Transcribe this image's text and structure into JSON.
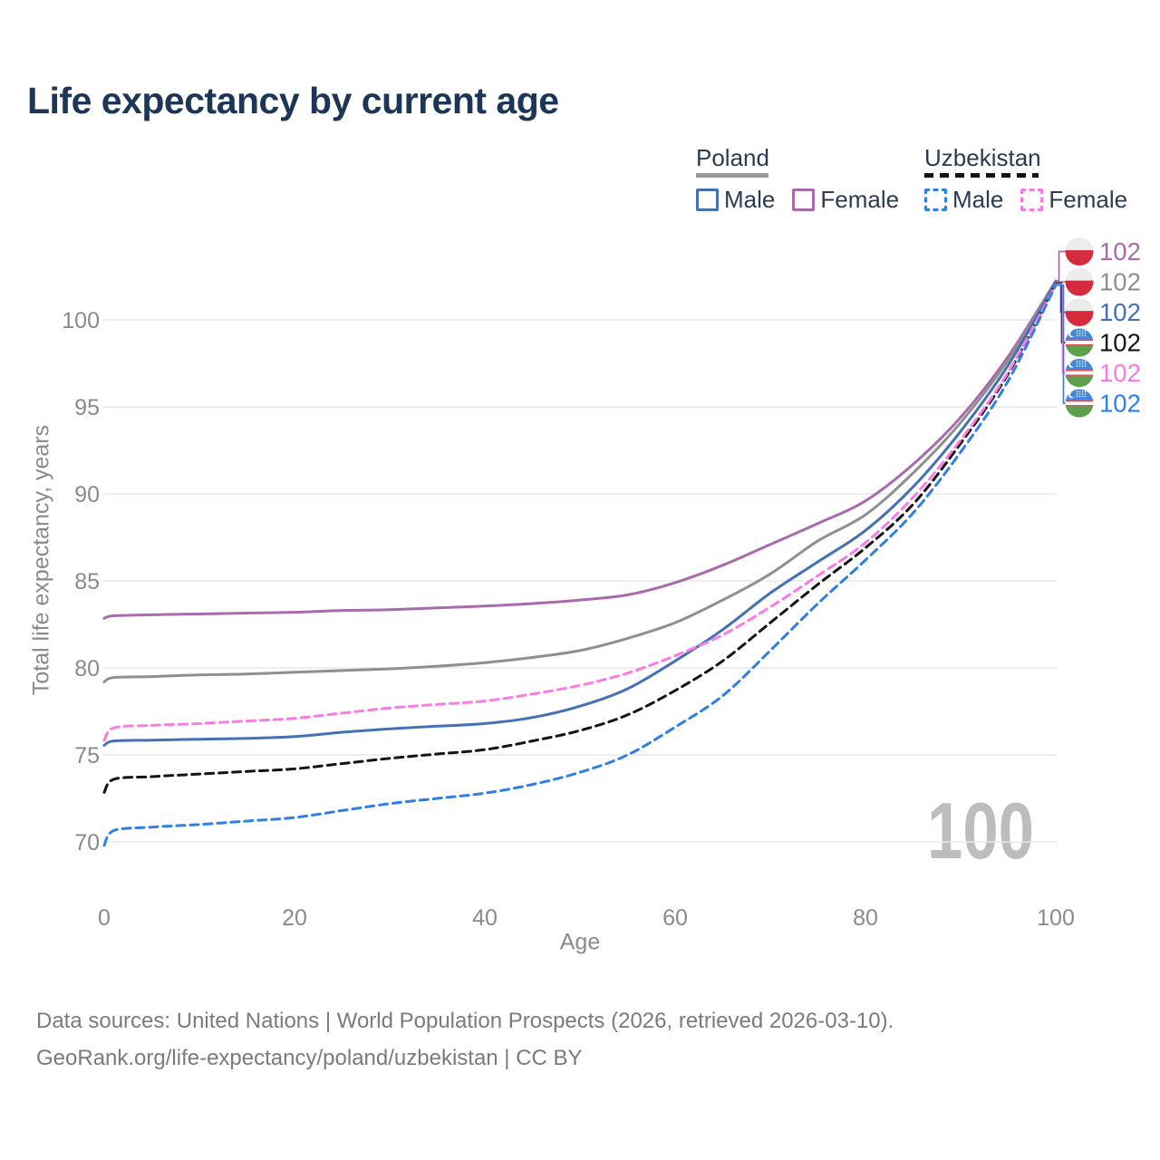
{
  "title": "Life expectancy by current age",
  "legend": {
    "groups": [
      {
        "name": "Poland",
        "line_style": "solid",
        "underline_color": "#9a9a9a",
        "items": [
          {
            "label": "Male",
            "color": "#4371b3"
          },
          {
            "label": "Female",
            "color": "#a96aae"
          }
        ]
      },
      {
        "name": "Uzbekistan",
        "line_style": "dashed",
        "underline_color": "#141414",
        "items": [
          {
            "label": "Male",
            "color": "#2e7fe8"
          },
          {
            "label": "Female",
            "color": "#fb7ae3"
          }
        ]
      }
    ]
  },
  "chart_data": {
    "type": "line",
    "title": "Life expectancy by current age",
    "xlabel": "Age",
    "ylabel": "Total life expectancy, years",
    "xlim": [
      0,
      100
    ],
    "ylim": [
      68.5,
      103.5
    ],
    "xticks": [
      0,
      20,
      40,
      60,
      80,
      100
    ],
    "yticks": [
      70,
      75,
      80,
      85,
      90,
      95,
      100
    ],
    "grid": "horizontal",
    "legend_position": "top-right",
    "watermark": {
      "text": "100",
      "color": "#bdbdbd"
    },
    "x": [
      0,
      1,
      5,
      10,
      15,
      20,
      25,
      30,
      35,
      40,
      45,
      50,
      55,
      60,
      65,
      70,
      75,
      80,
      85,
      90,
      95,
      100
    ],
    "series": [
      {
        "name": "Poland Female",
        "country": "Poland",
        "sex": "Female",
        "flag": "poland",
        "color": "#a96aae",
        "dash": false,
        "end_label": "102",
        "values": [
          82.85,
          83.0,
          83.05,
          83.1,
          83.15,
          83.2,
          83.3,
          83.35,
          83.45,
          83.55,
          83.7,
          83.9,
          84.2,
          84.9,
          85.9,
          87.1,
          88.3,
          89.6,
          91.7,
          94.4,
          97.9,
          102.25
        ]
      },
      {
        "name": "Poland",
        "country": "Poland",
        "sex": "Both",
        "flag": "poland",
        "color": "#8f8f8f",
        "dash": false,
        "end_label": "102",
        "values": [
          79.2,
          79.45,
          79.5,
          79.6,
          79.65,
          79.75,
          79.85,
          79.95,
          80.1,
          80.3,
          80.6,
          81.0,
          81.7,
          82.6,
          83.9,
          85.4,
          87.3,
          88.8,
          91.2,
          94.1,
          97.7,
          102.2
        ]
      },
      {
        "name": "Poland Male",
        "country": "Poland",
        "sex": "Male",
        "flag": "poland",
        "color": "#4371b3",
        "dash": false,
        "end_label": "102",
        "values": [
          75.55,
          75.8,
          75.85,
          75.9,
          75.95,
          76.05,
          76.3,
          76.5,
          76.65,
          76.8,
          77.15,
          77.8,
          78.8,
          80.4,
          82.2,
          84.3,
          86.1,
          87.9,
          90.4,
          93.6,
          97.4,
          102.15
        ]
      },
      {
        "name": "Uzbekistan",
        "country": "Uzbekistan",
        "sex": "Both",
        "flag": "uzbekistan",
        "color": "#141414",
        "dash": true,
        "end_label": "102",
        "values": [
          72.85,
          73.6,
          73.75,
          73.9,
          74.05,
          74.2,
          74.5,
          74.8,
          75.05,
          75.3,
          75.8,
          76.4,
          77.3,
          78.7,
          80.4,
          82.6,
          84.8,
          86.9,
          89.4,
          92.9,
          96.9,
          102.1
        ]
      },
      {
        "name": "Uzbekistan Female",
        "country": "Uzbekistan",
        "sex": "Female",
        "flag": "uzbekistan",
        "color": "#fb7ae3",
        "dash": true,
        "end_label": "102",
        "values": [
          75.85,
          76.55,
          76.7,
          76.8,
          76.95,
          77.1,
          77.4,
          77.7,
          77.9,
          78.1,
          78.5,
          79.0,
          79.7,
          80.7,
          81.9,
          83.5,
          85.3,
          87.2,
          89.8,
          93.1,
          97.0,
          102.05
        ]
      },
      {
        "name": "Uzbekistan Male",
        "country": "Uzbekistan",
        "sex": "Male",
        "flag": "uzbekistan",
        "color": "#2e7fe8",
        "dash": true,
        "end_label": "102",
        "values": [
          69.8,
          70.65,
          70.85,
          71.0,
          71.2,
          71.4,
          71.8,
          72.2,
          72.5,
          72.8,
          73.3,
          74.0,
          75.0,
          76.6,
          78.4,
          81.0,
          83.7,
          86.2,
          88.9,
          92.4,
          96.5,
          102.0
        ]
      }
    ]
  },
  "footer": {
    "line1": "Data sources: United Nations | World Population Prospects (2026, retrieved 2026-03-10).",
    "line2": "GeoRank.org/life-expectancy/poland/uzbekistan | CC BY"
  }
}
